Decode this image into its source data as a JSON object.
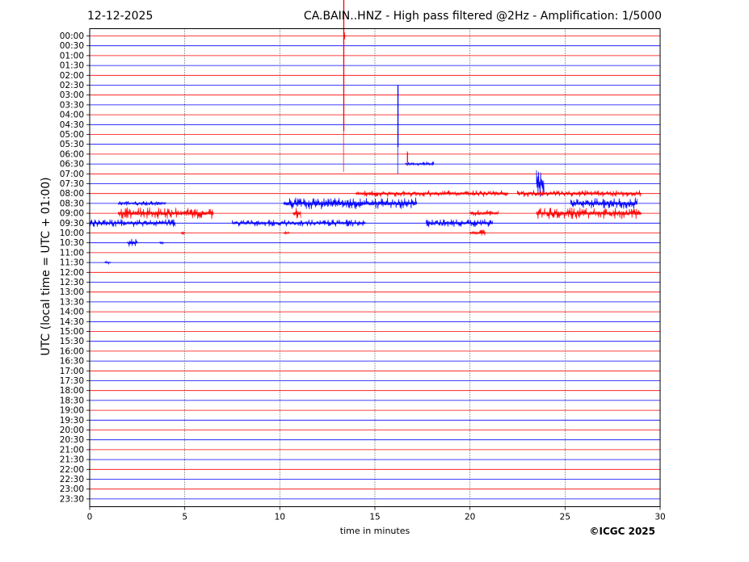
{
  "header": {
    "date": "12-12-2025",
    "title": "CA.BAIN..HNZ - High pass filtered @2Hz - Amplification: 1/5000",
    "copyright": "©ICGC 2025"
  },
  "chart_data": {
    "type": "line",
    "title": "CA.BAIN..HNZ - High pass filtered @2Hz - Amplification: 1/5000",
    "xlabel": "time in minutes",
    "ylabel": "UTC (local time = UTC + 01:00)",
    "xlim": [
      0,
      30
    ],
    "x_ticks": [
      0,
      5,
      10,
      15,
      20,
      25,
      30
    ],
    "vertical_grid_at": [
      5,
      10,
      15,
      20,
      25
    ],
    "grid": "dotted vertical",
    "y_tick_labels": [
      "00:00",
      "00:30",
      "01:00",
      "01:30",
      "02:00",
      "02:30",
      "03:00",
      "03:30",
      "04:00",
      "04:30",
      "05:00",
      "05:30",
      "06:00",
      "06:30",
      "07:00",
      "07:30",
      "08:00",
      "08:30",
      "09:00",
      "09:30",
      "10:00",
      "10:30",
      "11:00",
      "11:30",
      "12:00",
      "12:30",
      "13:00",
      "13:30",
      "14:00",
      "14:30",
      "15:00",
      "15:30",
      "16:00",
      "16:30",
      "17:00",
      "17:30",
      "18:00",
      "18:30",
      "19:00",
      "19:30",
      "20:00",
      "20:30",
      "21:00",
      "21:30",
      "22:00",
      "22:30",
      "23:00",
      "23:30"
    ],
    "colors": {
      "even_rows": "#ff0000",
      "odd_rows": "#0000ff"
    },
    "events": [
      {
        "row": "00:00",
        "t": 13.4,
        "amp": 0.4,
        "dur": 0.02,
        "note": "spike"
      },
      {
        "row": "00:00",
        "t": 13.35,
        "up": 8.0,
        "down": 13.8,
        "note": "large spike"
      },
      {
        "row": "02:30",
        "t": 16.2,
        "up": 0.0,
        "down": 9.0,
        "note": "large spike"
      },
      {
        "row": "06:00",
        "t": 16.7,
        "up": 0.3,
        "down": 1.2,
        "note": "spike"
      },
      {
        "row": "06:30",
        "t": 16.6,
        "amp": 0.25,
        "dur": 1.5,
        "note": "tail"
      },
      {
        "row": "07:30",
        "t": 23.5,
        "amp": 1.4,
        "dur": 0.4,
        "note": "burst"
      },
      {
        "row": "08:00",
        "t": 14.0,
        "amp": 0.35,
        "dur": 8.0,
        "note": "burst"
      },
      {
        "row": "08:00",
        "t": 22.5,
        "amp": 0.35,
        "dur": 6.5,
        "note": "burst"
      },
      {
        "row": "08:30",
        "t": 10.2,
        "amp": 0.6,
        "dur": 7.0,
        "note": "burst"
      },
      {
        "row": "08:30",
        "t": 1.5,
        "amp": 0.25,
        "dur": 2.5,
        "note": "burst"
      },
      {
        "row": "08:30",
        "t": 25.3,
        "amp": 0.6,
        "dur": 3.5,
        "note": "burst"
      },
      {
        "row": "09:00",
        "t": 1.5,
        "amp": 0.6,
        "dur": 5.0,
        "note": "burst"
      },
      {
        "row": "09:00",
        "t": 10.7,
        "amp": 0.7,
        "dur": 0.4,
        "note": "burst"
      },
      {
        "row": "09:00",
        "t": 20.0,
        "amp": 0.4,
        "dur": 1.5,
        "note": "burst"
      },
      {
        "row": "09:00",
        "t": 23.5,
        "amp": 0.6,
        "dur": 5.5,
        "note": "burst"
      },
      {
        "row": "09:30",
        "t": 0.0,
        "amp": 0.4,
        "dur": 4.5,
        "note": "burst"
      },
      {
        "row": "09:30",
        "t": 7.5,
        "amp": 0.35,
        "dur": 7.0,
        "note": "burst"
      },
      {
        "row": "09:30",
        "t": 17.7,
        "amp": 0.4,
        "dur": 3.5,
        "note": "burst"
      },
      {
        "row": "10:00",
        "t": 20.0,
        "amp": 0.35,
        "dur": 0.8,
        "note": "burst"
      },
      {
        "row": "10:00",
        "t": 4.8,
        "amp": 0.25,
        "dur": 0.2,
        "note": "burst"
      },
      {
        "row": "10:00",
        "t": 10.2,
        "amp": 0.2,
        "dur": 0.3,
        "note": "burst"
      },
      {
        "row": "10:30",
        "t": 2.0,
        "amp": 0.4,
        "dur": 0.5,
        "note": "burst"
      },
      {
        "row": "10:30",
        "t": 3.7,
        "amp": 0.2,
        "dur": 0.2,
        "note": "burst"
      },
      {
        "row": "11:30",
        "t": 0.8,
        "amp": 0.15,
        "dur": 0.3,
        "note": "burst"
      }
    ]
  }
}
